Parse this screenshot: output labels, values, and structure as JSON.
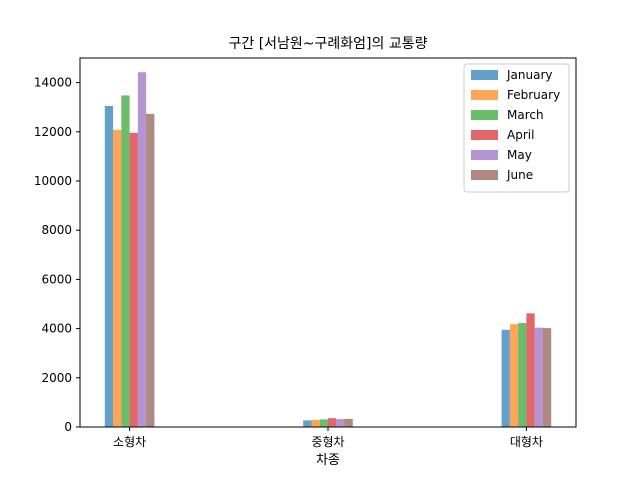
{
  "chart_data": {
    "type": "bar",
    "title": "구간 [서남원~구례화엄]의 교통량",
    "xlabel": "차종",
    "ylabel": "",
    "categories": [
      "소형차",
      "중형차",
      "대형차"
    ],
    "ylim": [
      0,
      15000
    ],
    "yticks": [
      0,
      2000,
      4000,
      6000,
      8000,
      10000,
      12000,
      14000
    ],
    "grid": false,
    "legend_position": "top-right",
    "series": [
      {
        "name": "January",
        "color": "#1f77b4",
        "values": [
          13050,
          270,
          3950
        ]
      },
      {
        "name": "February",
        "color": "#ff7f0e",
        "values": [
          12080,
          290,
          4180
        ]
      },
      {
        "name": "March",
        "color": "#2ca02c",
        "values": [
          13480,
          310,
          4230
        ]
      },
      {
        "name": "April",
        "color": "#d62728",
        "values": [
          11960,
          360,
          4620
        ]
      },
      {
        "name": "May",
        "color": "#9467bd",
        "values": [
          14420,
          320,
          4040
        ]
      },
      {
        "name": "June",
        "color": "#8c564b",
        "values": [
          12730,
          330,
          4020
        ]
      }
    ]
  }
}
